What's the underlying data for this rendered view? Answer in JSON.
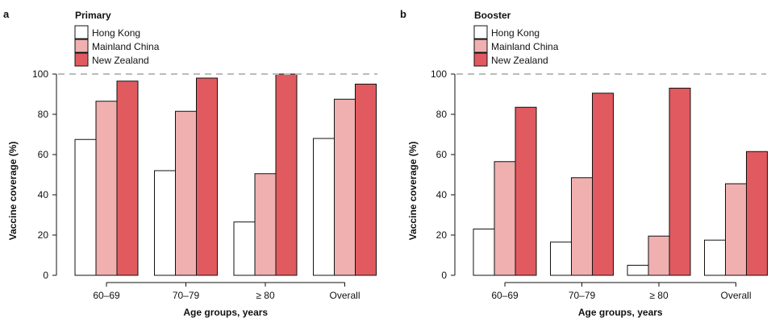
{
  "colors": {
    "hong_kong": "#ffffff",
    "mainland_china": "#f0b0b0",
    "new_zealand": "#e05a5f",
    "reference_line": "#bbbbbb"
  },
  "chart_data": [
    {
      "type": "bar",
      "panel": "a",
      "title": "Primary",
      "categories": [
        "60–69",
        "70–79",
        "≥ 80",
        "Overall"
      ],
      "series": [
        {
          "name": "Hong Kong",
          "values": [
            67.5,
            52,
            26.5,
            68
          ]
        },
        {
          "name": "Mainland China",
          "values": [
            86.5,
            81.5,
            50.5,
            87.5
          ]
        },
        {
          "name": "New Zealand",
          "values": [
            96.5,
            98,
            100,
            95
          ]
        }
      ],
      "xlabel": "Age groups, years",
      "ylabel": "Vaccine coverage (%)",
      "ylim": [
        0,
        100
      ],
      "yticks": [
        0,
        20,
        40,
        60,
        80,
        100
      ],
      "reference_line": 100,
      "grid": false,
      "legend": "top-left"
    },
    {
      "type": "bar",
      "panel": "b",
      "title": "Booster",
      "categories": [
        "60–69",
        "70–79",
        "≥ 80",
        "Overall"
      ],
      "series": [
        {
          "name": "Hong Kong",
          "values": [
            23,
            16.5,
            5,
            17.5
          ]
        },
        {
          "name": "Mainland China",
          "values": [
            56.5,
            48.5,
            19.5,
            45.5
          ]
        },
        {
          "name": "New Zealand",
          "values": [
            83.5,
            90.5,
            93,
            61.5
          ]
        }
      ],
      "xlabel": "Age groups, years",
      "ylabel": "Vaccine coverage (%)",
      "ylim": [
        0,
        100
      ],
      "yticks": [
        0,
        20,
        40,
        60,
        80,
        100
      ],
      "reference_line": 100,
      "grid": false,
      "legend": "top-left"
    }
  ]
}
